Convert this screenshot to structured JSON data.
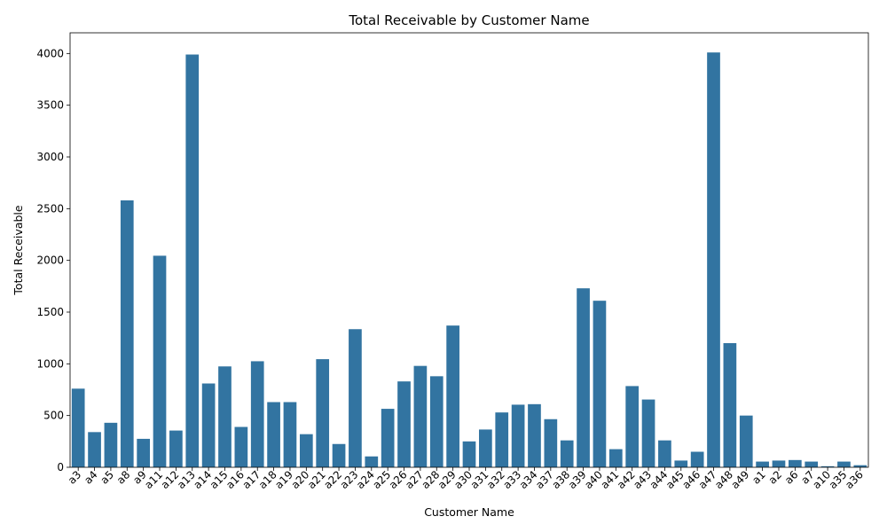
{
  "chart_data": {
    "type": "bar",
    "title": "Total Receivable by Customer Name",
    "xlabel": "Customer Name",
    "ylabel": "Total Receivable",
    "ylim": [
      0,
      4200
    ],
    "yticks": [
      0,
      500,
      1000,
      1500,
      2000,
      2500,
      3000,
      3500,
      4000
    ],
    "grid": false,
    "bar_color": "#3274a1",
    "categories": [
      "a3",
      "a4",
      "a5",
      "a8",
      "a9",
      "a11",
      "a12",
      "a13",
      "a14",
      "a15",
      "a16",
      "a17",
      "a18",
      "a19",
      "a20",
      "a21",
      "a22",
      "a23",
      "a24",
      "a25",
      "a26",
      "a27",
      "a28",
      "a29",
      "a30",
      "a31",
      "a32",
      "a33",
      "a34",
      "a37",
      "a38",
      "a39",
      "a40",
      "a41",
      "a42",
      "a43",
      "a44",
      "a45",
      "a46",
      "a47",
      "a48",
      "a49",
      "a1",
      "a2",
      "a6",
      "a7",
      "a10",
      "a35",
      "a36"
    ],
    "values": [
      760,
      340,
      430,
      2580,
      275,
      2045,
      355,
      3990,
      810,
      975,
      390,
      1025,
      630,
      630,
      320,
      1045,
      225,
      1335,
      105,
      565,
      830,
      980,
      880,
      1370,
      250,
      365,
      530,
      605,
      610,
      465,
      260,
      1730,
      1610,
      175,
      785,
      655,
      260,
      65,
      150,
      4010,
      1200,
      500,
      55,
      65,
      70,
      55,
      10,
      55,
      20
    ]
  }
}
